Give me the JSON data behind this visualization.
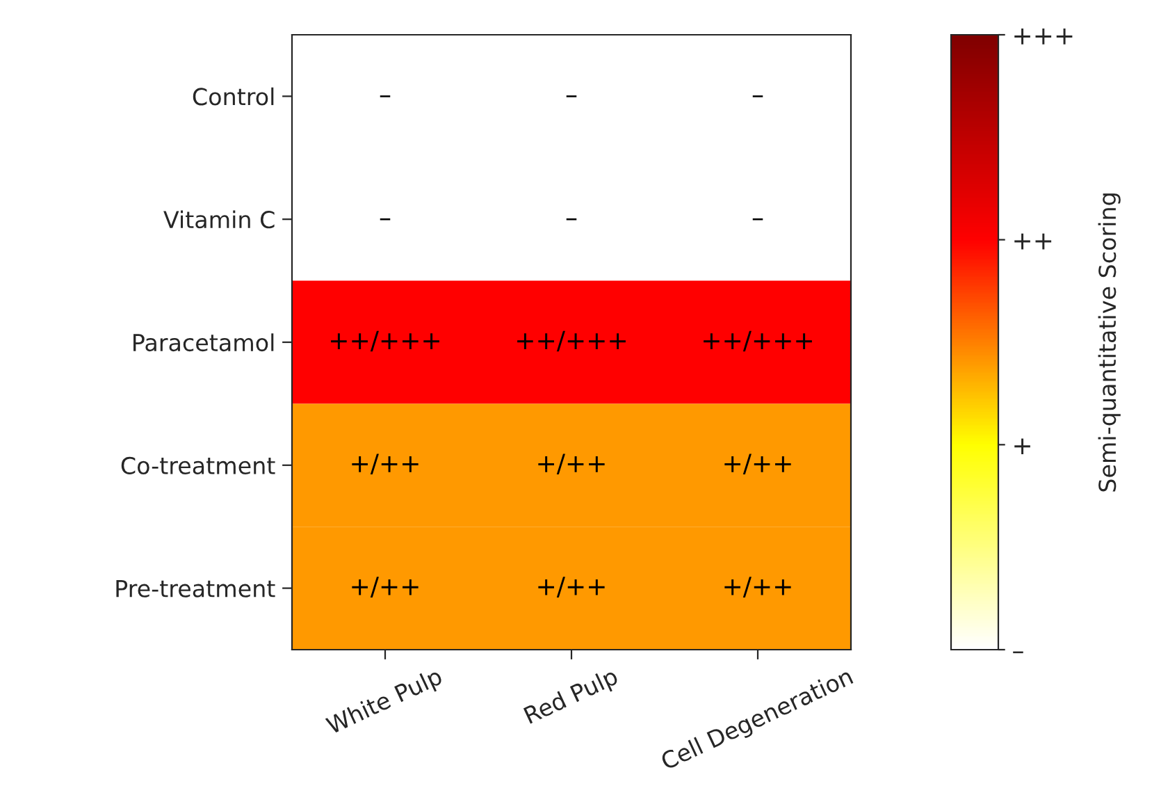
{
  "chart_data": {
    "type": "heatmap",
    "categories": [
      "White Pulp",
      "Red Pulp",
      "Cell Degeneration"
    ],
    "y_categories": [
      "Control",
      "Vitamin C",
      "Paracetamol",
      "Co-treatment",
      "Pre-treatment"
    ],
    "cells": [
      [
        0,
        0,
        0
      ],
      [
        0,
        0,
        0
      ],
      [
        2,
        2,
        2
      ],
      [
        1.4,
        1.4,
        1.4
      ],
      [
        1.4,
        1.4,
        1.4
      ]
    ],
    "cell_labels": [
      [
        "–",
        "–",
        "–"
      ],
      [
        "–",
        "–",
        "–"
      ],
      [
        "++/+++",
        "++/+++",
        "++/+++"
      ],
      [
        "+/++",
        "+/++",
        "+/++"
      ],
      [
        "+/++",
        "+/++",
        "+/++"
      ]
    ],
    "clim": [
      0,
      3
    ],
    "cticks": [
      {
        "value": 0,
        "label": "–"
      },
      {
        "value": 1,
        "label": "+"
      },
      {
        "value": 2,
        "label": "++"
      },
      {
        "value": 3,
        "label": "+++"
      }
    ],
    "clabel": "Semi-quantitative Scoring"
  }
}
